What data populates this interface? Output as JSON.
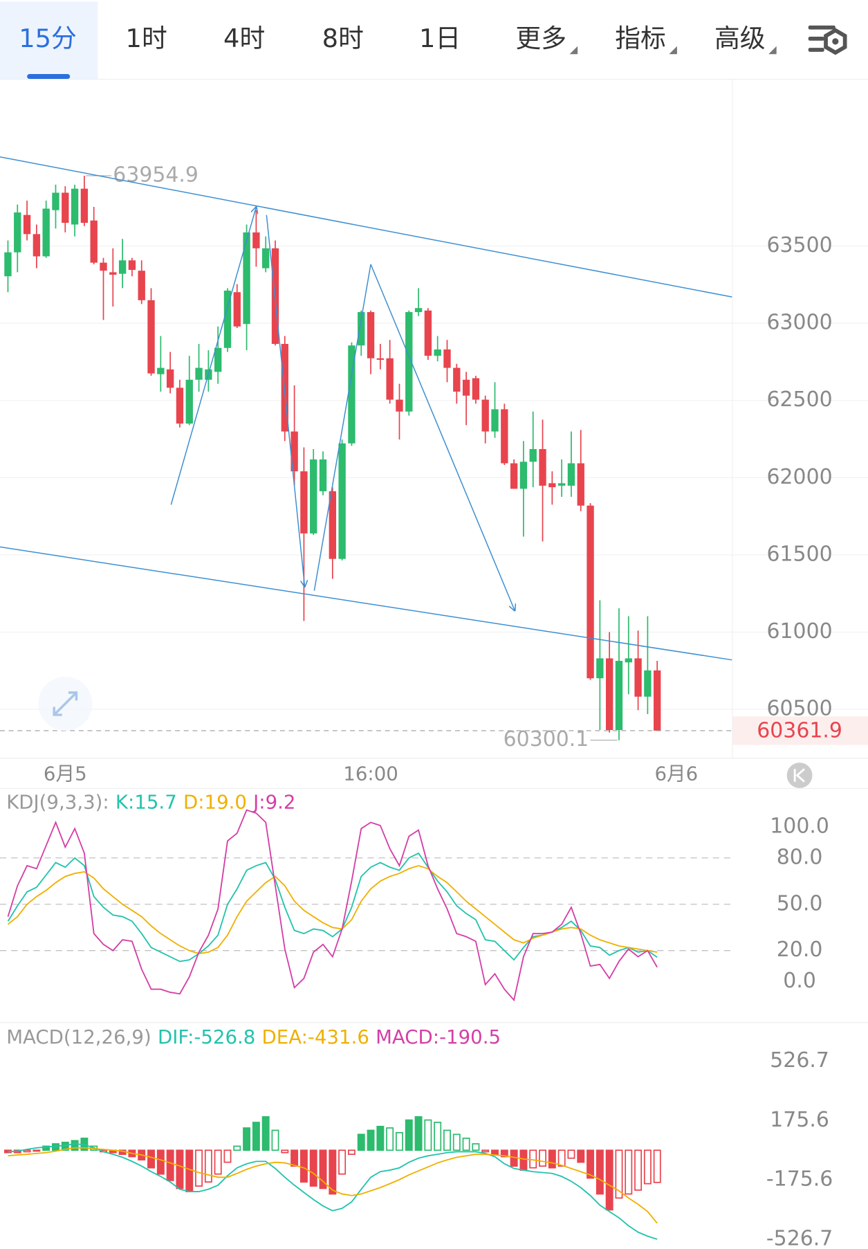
{
  "tabs": [
    {
      "label": "15分"
    },
    {
      "label": "1时"
    },
    {
      "label": "4时"
    },
    {
      "label": "8时"
    },
    {
      "label": "1日"
    },
    {
      "label": "更多",
      "menu": true
    },
    {
      "label": "指标",
      "menu": true
    },
    {
      "label": "高级",
      "menu": true
    }
  ],
  "active_tab": 0,
  "chart_data": [
    {
      "type": "candlestick",
      "colors": {
        "up": "#2dbb6e",
        "down": "#e8444e"
      },
      "xlim": [
        -0.83,
        75.83
      ],
      "xticks": [
        {
          "value": 6,
          "label": "6月5"
        },
        {
          "value": 38,
          "label": "16:00"
        },
        {
          "value": 70,
          "label": "6月6"
        }
      ],
      "ylim": [
        60186,
        64577
      ],
      "yticks": [
        63500,
        63000,
        62500,
        62000,
        61500,
        61000,
        60500
      ],
      "grid": true,
      "high_index": 8,
      "low_index": 64,
      "open": [
        63304,
        63459,
        63701,
        63577,
        63433,
        63732,
        63845,
        63639,
        63871,
        63665,
        63392,
        63330,
        63320,
        63407,
        63340,
        63149,
        62670,
        62701,
        62582,
        62350,
        62634,
        62634,
        62685,
        62840,
        63201,
        62995,
        63588,
        63356,
        63485,
        62866,
        62299,
        62041,
        61639,
        61912,
        61912,
        61474,
        62222,
        62856,
        63072,
        62773,
        62773,
        62505,
        62428,
        63072,
        63082,
        62789,
        62830,
        62711,
        62634,
        62644,
        62505,
        62299,
        62443,
        62093,
        61928,
        62103,
        62185,
        61964,
        61948,
        61948,
        62093,
        61819,
        60701,
        60830,
        60366,
        60804,
        60830,
        60582,
        60752
      ],
      "high": [
        63536,
        63768,
        63794,
        63639,
        63794,
        63897,
        63887,
        63897,
        63954.9,
        63753,
        63423,
        63485,
        63546,
        63423,
        63407,
        63227,
        62917,
        62814,
        62634,
        62789,
        62866,
        62825,
        62979,
        63227,
        63253,
        63639,
        63732,
        63562,
        63536,
        62917,
        62598,
        62196,
        62185,
        62170,
        61938,
        62247,
        62876,
        63082,
        63082,
        62866,
        62892,
        62608,
        63082,
        63227,
        63098,
        62917,
        62892,
        62737,
        62685,
        62660,
        62531,
        62618,
        62479,
        62118,
        62237,
        62428,
        62376,
        62041,
        62118,
        62299,
        62309,
        61835,
        61206,
        61000,
        61154,
        61103,
        61010,
        61103,
        60814
      ],
      "low": [
        63201,
        63330,
        63536,
        63356,
        63423,
        63613,
        63588,
        63562,
        63629,
        63381,
        63021,
        63108,
        63227,
        63304,
        63124,
        62660,
        62557,
        62546,
        62325,
        62340,
        62557,
        62557,
        62608,
        62814,
        62969,
        62825,
        63366,
        63330,
        62856,
        62237,
        61948,
        61072,
        61629,
        61886,
        61345,
        61464,
        62206,
        62789,
        62670,
        62701,
        62479,
        62247,
        62402,
        63046,
        62763,
        62753,
        62618,
        62479,
        62340,
        62479,
        62222,
        62258,
        62082,
        61928,
        61618,
        61938,
        61587,
        61825,
        61876,
        61876,
        61783,
        60690,
        60366,
        60350,
        60300.1,
        60598,
        60495,
        60469,
        60361.9
      ],
      "close": [
        63459,
        63717,
        63577,
        63433,
        63742,
        63845,
        63650,
        63871,
        63650,
        63392,
        63340,
        63314,
        63407,
        63345,
        63149,
        62675,
        62711,
        62582,
        62350,
        62634,
        62711,
        62701,
        62840,
        63211,
        62979,
        63588,
        63485,
        63485,
        62866,
        62299,
        62041,
        61639,
        62118,
        62118,
        61474,
        62222,
        62856,
        63072,
        62773,
        62763,
        62505,
        62428,
        63072,
        63098,
        62789,
        62830,
        62711,
        62557,
        62531,
        62505,
        62299,
        62443,
        62093,
        61928,
        62103,
        62185,
        61948,
        61938,
        61964,
        62093,
        61819,
        60701,
        60830,
        60366,
        60814,
        60830,
        60582,
        60752,
        60361.9
      ]
    },
    {
      "type": "line",
      "title": "KDJ(9,3,3):",
      "ylim": [
        -26.3,
        124.2
      ],
      "yticks": [
        {
          "value": 100,
          "label": "100.0"
        },
        {
          "value": 80,
          "label": "80.0"
        },
        {
          "value": 50,
          "label": "50.0"
        },
        {
          "value": 20,
          "label": "20.0"
        },
        {
          "value": 0,
          "label": "0.0"
        }
      ],
      "grid_lines": [
        80,
        50,
        20
      ],
      "series": [
        {
          "name": "K:15.7",
          "color": "#22c3ad",
          "values": [
            39,
            49,
            58,
            61,
            69,
            77,
            74,
            80,
            75,
            55,
            48,
            43,
            42,
            39,
            31,
            22,
            19,
            16,
            13,
            14,
            18,
            23,
            30,
            50,
            60,
            72,
            75,
            77,
            66,
            48,
            33,
            31,
            34,
            33,
            29,
            34,
            48,
            68,
            74,
            77,
            74,
            72,
            80,
            83,
            74,
            65,
            58,
            49,
            44,
            40,
            27,
            26,
            20,
            14,
            22,
            29,
            30,
            32,
            35,
            39,
            33,
            23,
            22,
            17,
            20,
            22,
            19,
            20,
            15.7
          ]
        },
        {
          "name": "D:19.0",
          "color": "#f0b000",
          "values": [
            37,
            42,
            50,
            55,
            59,
            64,
            68,
            70,
            71,
            67,
            60,
            55,
            50,
            46,
            42,
            36,
            31,
            27,
            23,
            20,
            18,
            19,
            22,
            30,
            42,
            52,
            58,
            64,
            68,
            62,
            52,
            46,
            42,
            38,
            35,
            34,
            40,
            52,
            60,
            65,
            68,
            70,
            73,
            75,
            73,
            68,
            64,
            58,
            52,
            47,
            42,
            37,
            32,
            27,
            25,
            28,
            30,
            32,
            34,
            35,
            34,
            30,
            27,
            25,
            23,
            22,
            21,
            20,
            19.0
          ]
        },
        {
          "name": "J:9.2",
          "color": "#d43fa6",
          "values": [
            42,
            62,
            75,
            73,
            88,
            103,
            87,
            99,
            83,
            31,
            24,
            20,
            27,
            26,
            8,
            -5,
            -5,
            -7,
            -8,
            3,
            19,
            30,
            47,
            91,
            96,
            111,
            109,
            103,
            62,
            21,
            -4,
            2,
            19,
            24,
            16,
            34,
            65,
            99,
            103,
            101,
            86,
            75,
            94,
            98,
            75,
            60,
            47,
            31,
            29,
            26,
            -2,
            5,
            -5,
            -12,
            16,
            31,
            31,
            32,
            37,
            48,
            31,
            10,
            11,
            2,
            13,
            21,
            16,
            20,
            9.2
          ]
        }
      ]
    },
    {
      "type": "macd",
      "title": "MACD(12,26,9)",
      "ylim": [
        -575,
        721
      ],
      "yticks": [
        526.7,
        175.6,
        -175.6,
        -526.7
      ],
      "series": [
        {
          "name": "DIF:-526.8",
          "color": "#22c3ad",
          "values": [
            -9,
            -5,
            5,
            14,
            19,
            24,
            28,
            38,
            33,
            14,
            -9,
            -24,
            -42,
            -66,
            -94,
            -127,
            -155,
            -188,
            -231,
            -245,
            -245,
            -231,
            -207,
            -151,
            -104,
            -80,
            -66,
            -66,
            -108,
            -160,
            -207,
            -250,
            -292,
            -330,
            -358,
            -344,
            -306,
            -231,
            -160,
            -127,
            -118,
            -104,
            -71,
            -47,
            -33,
            -24,
            -14,
            -9,
            -9,
            -9,
            -19,
            -38,
            -80,
            -108,
            -118,
            -127,
            -132,
            -137,
            -155,
            -184,
            -221,
            -268,
            -325,
            -363,
            -400,
            -447,
            -485,
            -509,
            -526.8
          ]
        },
        {
          "name": "DEA:-431.6",
          "color": "#f0b000",
          "values": [
            -33,
            -28,
            -24,
            -19,
            -14,
            -5,
            5,
            14,
            14,
            9,
            5,
            0,
            -5,
            -19,
            -28,
            -42,
            -57,
            -75,
            -94,
            -113,
            -132,
            -146,
            -160,
            -160,
            -137,
            -113,
            -94,
            -80,
            -71,
            -75,
            -89,
            -104,
            -137,
            -184,
            -236,
            -259,
            -268,
            -259,
            -240,
            -221,
            -198,
            -174,
            -146,
            -122,
            -99,
            -75,
            -57,
            -42,
            -33,
            -24,
            -24,
            -28,
            -33,
            -42,
            -52,
            -57,
            -66,
            -75,
            -89,
            -108,
            -127,
            -146,
            -174,
            -207,
            -240,
            -283,
            -320,
            -363,
            -431.6
          ]
        },
        {
          "name": "MACD:-190.5",
          "color": "#d43fa6",
          "bars": true,
          "values": [
            -14,
            -14,
            -9,
            -5,
            24,
            38,
            47,
            57,
            71,
            24,
            -9,
            -14,
            -24,
            -38,
            -57,
            -104,
            -141,
            -179,
            -226,
            -245,
            -212,
            -188,
            -141,
            -71,
            24,
            132,
            165,
            198,
            118,
            -14,
            -94,
            -188,
            -212,
            -226,
            -259,
            -141,
            -24,
            94,
            118,
            141,
            132,
            104,
            179,
            198,
            179,
            165,
            118,
            94,
            71,
            38,
            -9,
            -24,
            -38,
            -94,
            -118,
            -104,
            -94,
            -104,
            -94,
            -47,
            -71,
            -165,
            -259,
            -353,
            -283,
            -259,
            -236,
            -198,
            -190.5
          ]
        }
      ]
    }
  ]
}
